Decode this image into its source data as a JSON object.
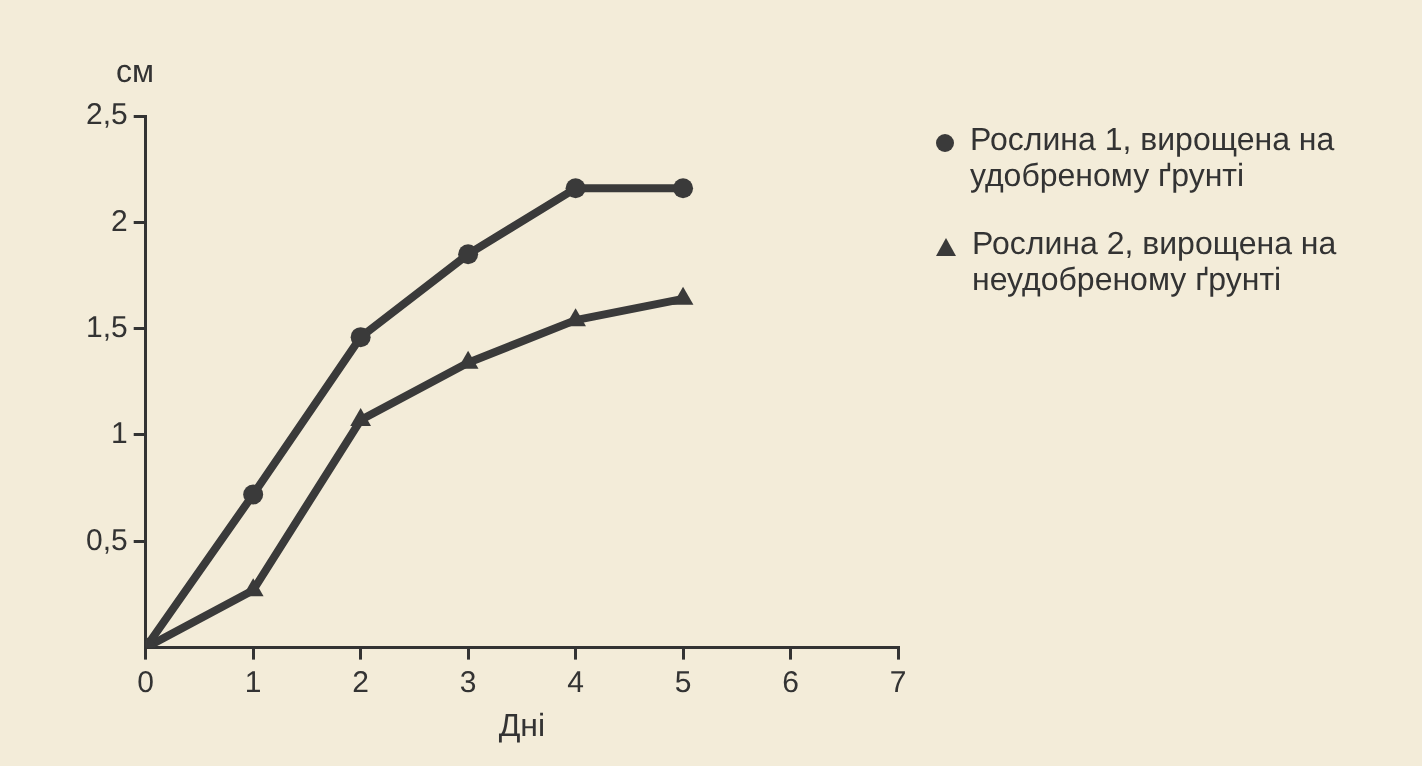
{
  "chart_data": {
    "type": "line",
    "xlabel": "Дні",
    "ylabel": "см",
    "x": [
      0,
      1,
      2,
      3,
      4,
      5
    ],
    "series": [
      {
        "name": "Рослина 1, вирощена на удобреному ґрунті",
        "color": "#3a3a3a",
        "marker": "circle",
        "values": [
          0,
          0.72,
          1.46,
          1.85,
          2.16,
          2.16
        ]
      },
      {
        "name": "Рослина 2, вирощена на неудобреному ґрунті",
        "color": "#3a3a3a",
        "marker": "triangle",
        "values": [
          0,
          0.27,
          1.07,
          1.34,
          1.54,
          1.64
        ]
      }
    ],
    "xlim": [
      0,
      7
    ],
    "xticks": [
      0,
      1,
      2,
      3,
      4,
      5,
      6,
      7
    ],
    "ylim": [
      0,
      2.5
    ],
    "yticks": [
      {
        "value": 0.5,
        "label": "0,5"
      },
      1,
      {
        "value": 1.5,
        "label": "1,5"
      },
      2,
      {
        "value": 2.5,
        "label": "2,5"
      }
    ],
    "grid": false,
    "legend": "right"
  }
}
